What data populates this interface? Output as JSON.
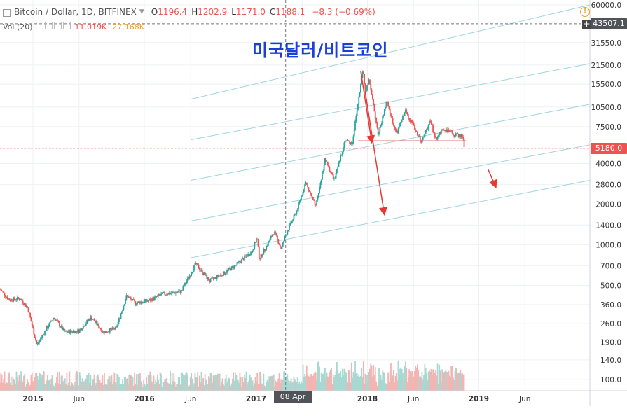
{
  "header": {
    "symbol": "Bitcoin / Dollar, 1D, BITFINEX",
    "ohlc": [
      {
        "key": "O",
        "value": "1196.4"
      },
      {
        "key": "H",
        "value": "1202.9"
      },
      {
        "key": "L",
        "value": "1171.0"
      },
      {
        "key": "C",
        "value": "1188.1"
      }
    ],
    "change": "−8.3 (−0.69%)"
  },
  "volume_legend": {
    "label": "Vol (20)",
    "v1": "11.019K",
    "v2": "27.168K"
  },
  "headline": "미국달러/비트코인",
  "crosshair": {
    "x_label": "08 Apr '17",
    "y_label": "43507.1"
  },
  "last_price_label": "5180.0",
  "colors": {
    "up": "#26a69a",
    "down": "#ef5350",
    "channel": "#9fd4e0",
    "arrow": "#e53935",
    "headline": "#1a3fd8",
    "price_line": "#ef5350"
  },
  "chart_data": {
    "type": "line",
    "title": "",
    "xlabel": "",
    "ylabel": "",
    "y_scale": "log",
    "ylim": [
      80,
      70000
    ],
    "x_range": [
      "2014-09-15",
      "2019-12-31"
    ],
    "y_ticks": [
      "60000.0",
      "31550.0",
      "21500.0",
      "15500.0",
      "10500.0",
      "7500.0",
      "5180.0",
      "4000.0",
      "2800.0",
      "2000.0",
      "1400.0",
      "1000.0",
      "700.0",
      "500.0",
      "360.0",
      "260.0",
      "190.0",
      "140.0",
      "100.0"
    ],
    "y_tick_values": [
      60000,
      31550,
      21500,
      15500,
      10500,
      7500,
      5180,
      4000,
      2800,
      2000,
      1400,
      1000,
      700,
      500,
      360,
      260,
      190,
      140,
      100
    ],
    "x_ticks": [
      {
        "label": "2015",
        "date": "2015-01-01"
      },
      {
        "label": "Jun",
        "date": "2015-06-01"
      },
      {
        "label": "2016",
        "date": "2016-01-01"
      },
      {
        "label": "Jun",
        "date": "2016-06-01"
      },
      {
        "label": "2017",
        "date": "2017-01-01"
      },
      {
        "label": "Jun",
        "date": "2017-06-01"
      },
      {
        "label": "2018",
        "date": "2018-01-01"
      },
      {
        "label": "Jun",
        "date": "2018-06-01"
      },
      {
        "label": "2019",
        "date": "2019-01-01"
      },
      {
        "label": "Jun",
        "date": "2019-06-01"
      }
    ],
    "price_series": {
      "name": "",
      "points": [
        {
          "date": "2014-09-15",
          "price": 470
        },
        {
          "date": "2014-10-15",
          "price": 390
        },
        {
          "date": "2014-11-20",
          "price": 400
        },
        {
          "date": "2014-12-15",
          "price": 340
        },
        {
          "date": "2015-01-14",
          "price": 180
        },
        {
          "date": "2015-02-10",
          "price": 230
        },
        {
          "date": "2015-03-10",
          "price": 290
        },
        {
          "date": "2015-04-15",
          "price": 225
        },
        {
          "date": "2015-06-01",
          "price": 230
        },
        {
          "date": "2015-07-10",
          "price": 290
        },
        {
          "date": "2015-08-20",
          "price": 225
        },
        {
          "date": "2015-10-01",
          "price": 240
        },
        {
          "date": "2015-11-04",
          "price": 420
        },
        {
          "date": "2015-12-01",
          "price": 370
        },
        {
          "date": "2016-01-15",
          "price": 385
        },
        {
          "date": "2016-03-01",
          "price": 430
        },
        {
          "date": "2016-05-01",
          "price": 450
        },
        {
          "date": "2016-06-17",
          "price": 720
        },
        {
          "date": "2016-08-02",
          "price": 540
        },
        {
          "date": "2016-09-15",
          "price": 610
        },
        {
          "date": "2016-10-25",
          "price": 700
        },
        {
          "date": "2016-12-20",
          "price": 900
        },
        {
          "date": "2017-01-04",
          "price": 1140
        },
        {
          "date": "2017-01-12",
          "price": 780
        },
        {
          "date": "2017-03-01",
          "price": 1250
        },
        {
          "date": "2017-03-25",
          "price": 930
        },
        {
          "date": "2017-04-08",
          "price": 1188
        },
        {
          "date": "2017-05-15",
          "price": 1800
        },
        {
          "date": "2017-06-12",
          "price": 2900
        },
        {
          "date": "2017-07-16",
          "price": 1900
        },
        {
          "date": "2017-08-15",
          "price": 4300
        },
        {
          "date": "2017-09-15",
          "price": 3000
        },
        {
          "date": "2017-10-20",
          "price": 6000
        },
        {
          "date": "2017-11-12",
          "price": 5600
        },
        {
          "date": "2017-12-17",
          "price": 19800
        },
        {
          "date": "2017-12-25",
          "price": 13500
        },
        {
          "date": "2018-01-06",
          "price": 17000
        },
        {
          "date": "2018-02-06",
          "price": 6500
        },
        {
          "date": "2018-03-05",
          "price": 11500
        },
        {
          "date": "2018-04-06",
          "price": 6600
        },
        {
          "date": "2018-05-05",
          "price": 9900
        },
        {
          "date": "2018-06-28",
          "price": 5800
        },
        {
          "date": "2018-07-25",
          "price": 8300
        },
        {
          "date": "2018-08-14",
          "price": 6000
        },
        {
          "date": "2018-09-05",
          "price": 7300
        },
        {
          "date": "2018-10-15",
          "price": 6500
        },
        {
          "date": "2018-11-10",
          "price": 6400
        },
        {
          "date": "2018-11-15",
          "price": 5180
        }
      ]
    },
    "channel_lines": [
      {
        "from": {
          "date": "2016-06-01",
          "price": 12000
        },
        "to": {
          "date": "2019-12-31",
          "price": 60000
        }
      },
      {
        "from": {
          "date": "2016-06-01",
          "price": 6000
        },
        "to": {
          "date": "2019-12-31",
          "price": 22000
        }
      },
      {
        "from": {
          "date": "2016-06-01",
          "price": 3000
        },
        "to": {
          "date": "2019-12-31",
          "price": 11000
        }
      },
      {
        "from": {
          "date": "2016-06-01",
          "price": 1500
        },
        "to": {
          "date": "2019-12-31",
          "price": 5500
        }
      },
      {
        "from": {
          "date": "2016-06-01",
          "price": 800
        },
        "to": {
          "date": "2019-12-31",
          "price": 3000
        }
      }
    ],
    "support_line": {
      "from": {
        "date": "2017-12-01",
        "price": 5900
      },
      "to": {
        "date": "2018-11-20",
        "price": 5900
      }
    },
    "arrows": [
      {
        "from": {
          "date": "2017-12-10",
          "price": 19500
        },
        "to": {
          "date": "2018-01-15",
          "price": 5800
        }
      },
      {
        "from": {
          "date": "2017-12-25",
          "price": 13500
        },
        "to": {
          "date": "2018-02-25",
          "price": 1700
        }
      },
      {
        "from": {
          "date": "2019-02-01",
          "price": 3600
        },
        "to": {
          "date": "2019-02-25",
          "price": 2700
        }
      }
    ],
    "crosshair_date": "2017-04-08",
    "crosshair_price": 43507.1,
    "last_price": 5180.0
  }
}
